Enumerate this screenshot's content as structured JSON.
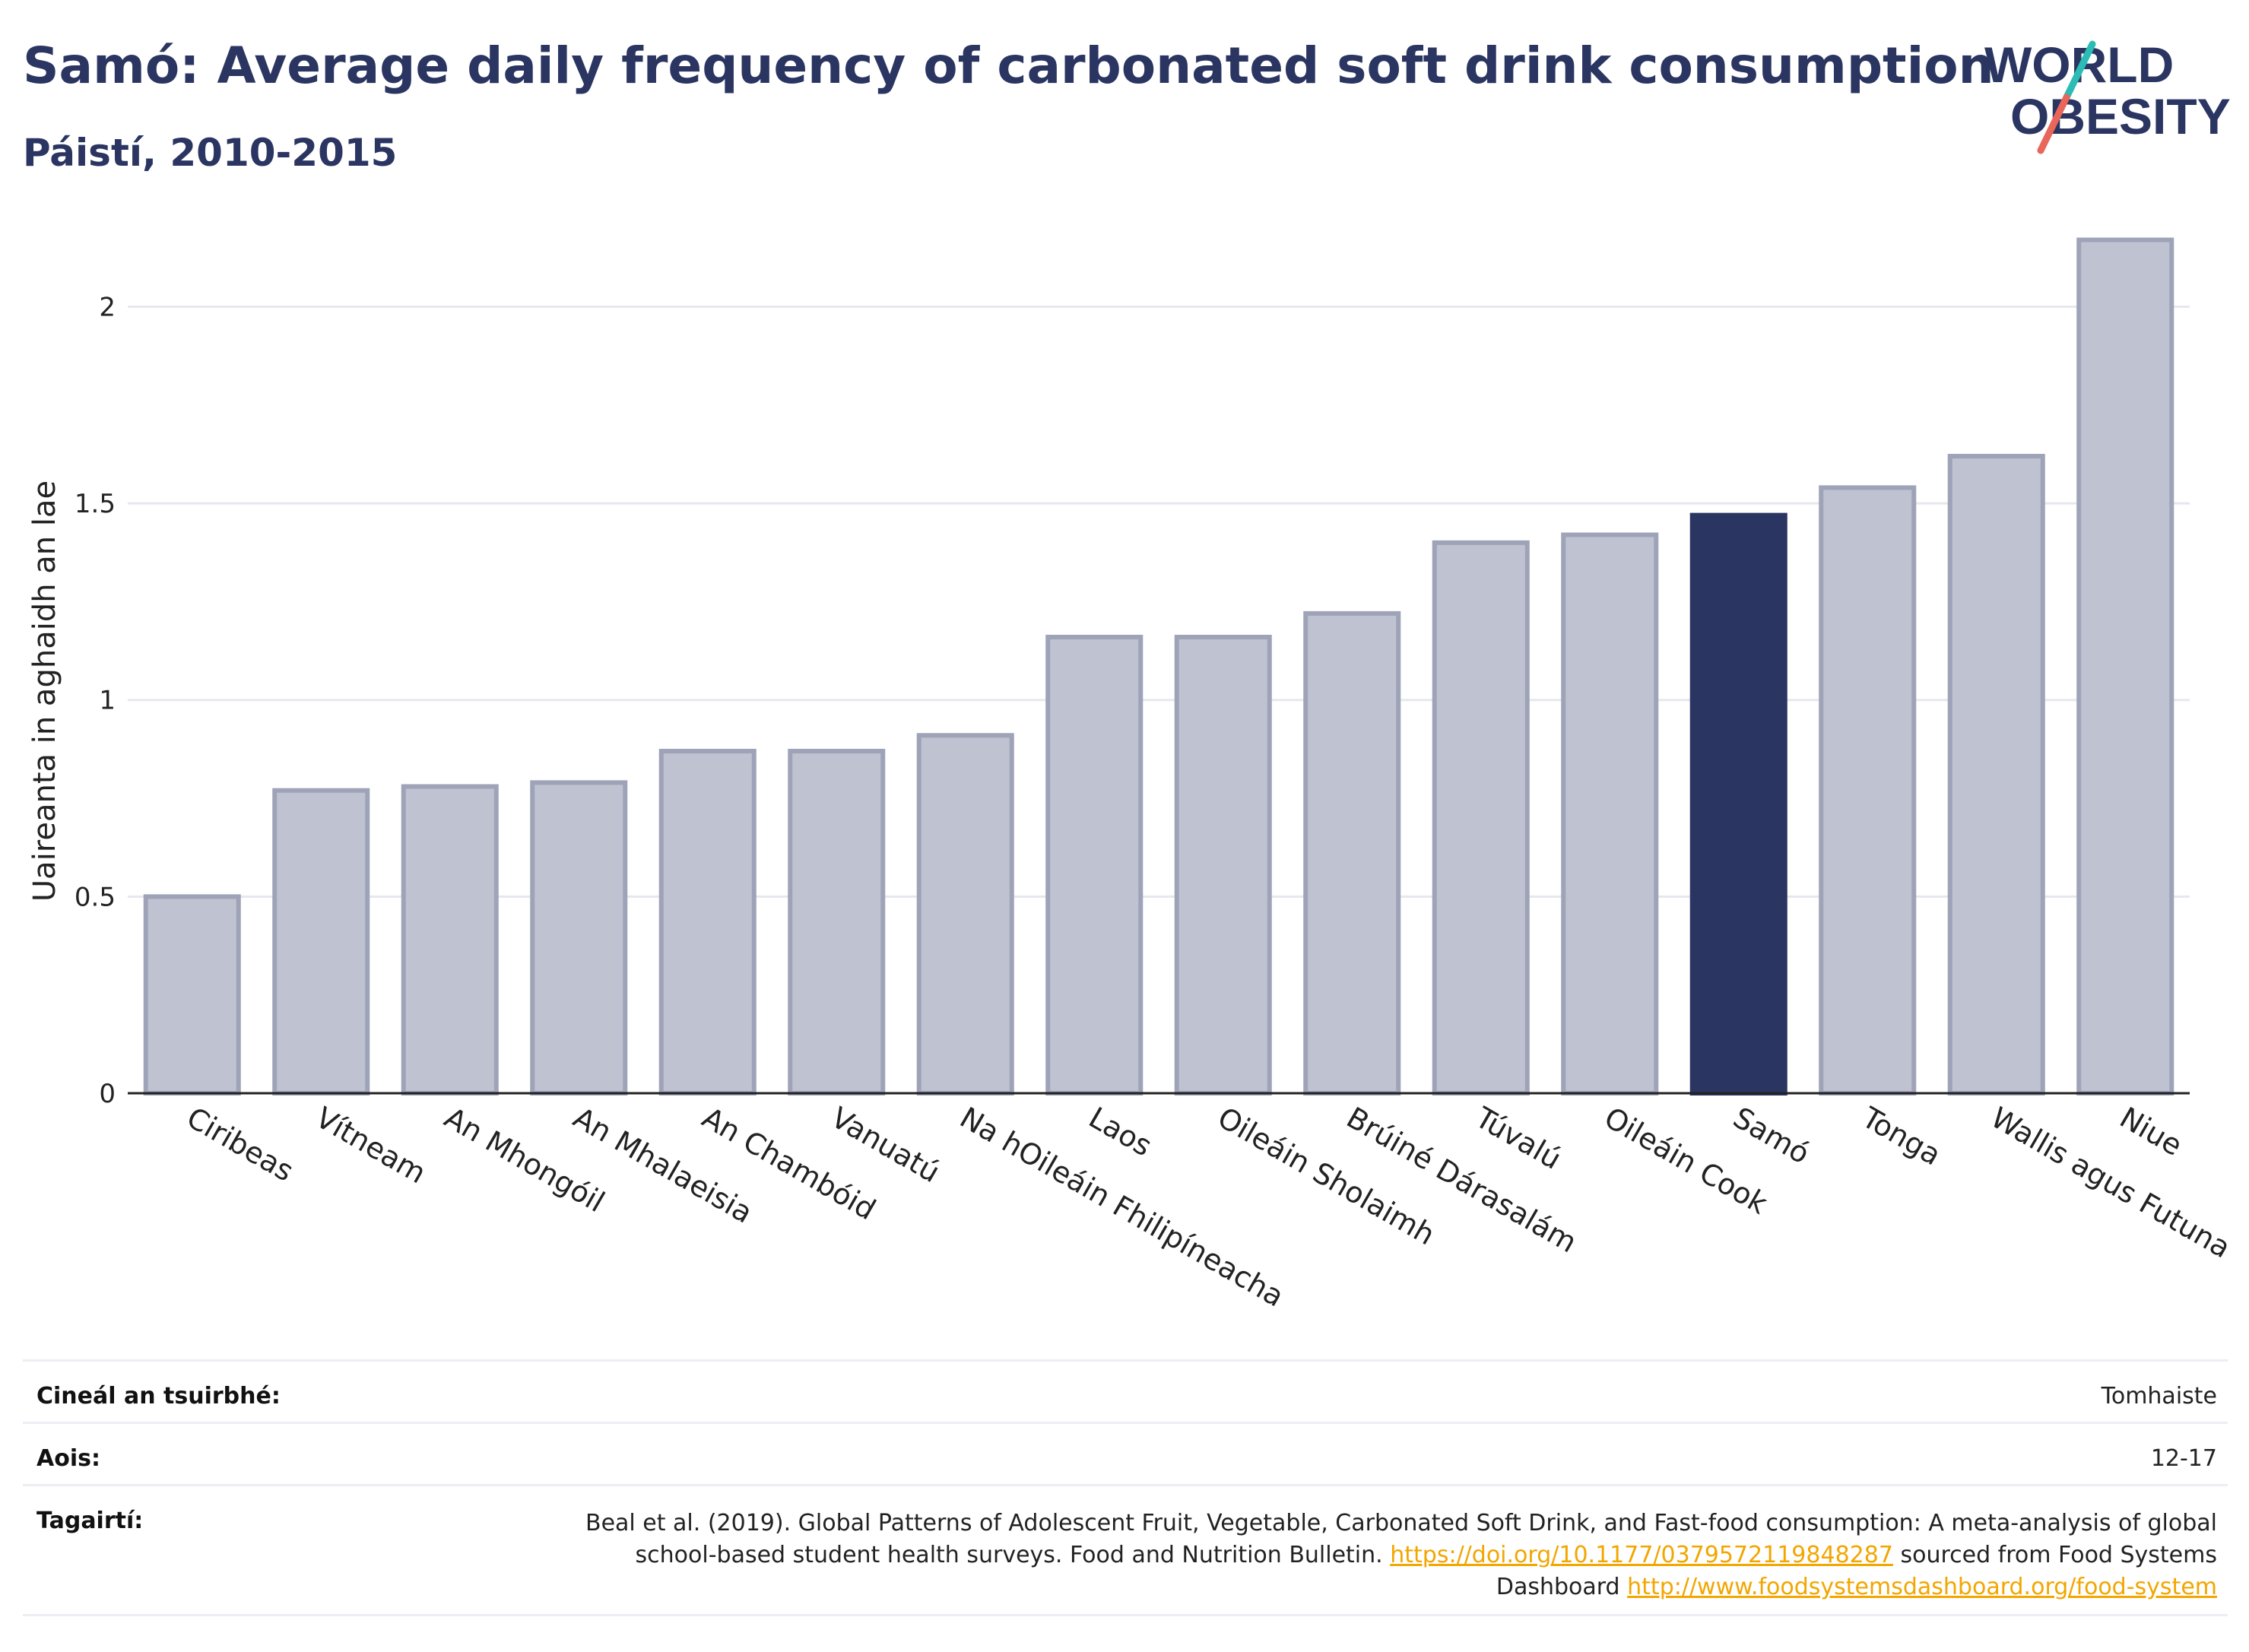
{
  "header": {
    "title": "Samó: Average daily frequency of carbonated soft drink consumption",
    "subtitle": "Páistí, 2010-2015"
  },
  "logo": {
    "line1": "WORLD",
    "line2": "OBESITY",
    "icon": "world-obesity-logo"
  },
  "colors": {
    "highlight": "#2b3561",
    "bar": "#bfc2d0",
    "bar_stroke": "#9ea3b8",
    "link": "#f2a600"
  },
  "chart_data": {
    "type": "bar",
    "ylabel": "Uaireanta in aghaidh an lae",
    "ylim": [
      0,
      2.2
    ],
    "yticks": [
      0,
      0.5,
      1,
      1.5,
      2
    ],
    "ytick_labels": [
      "0",
      "0.5",
      "1",
      "1.5",
      "2"
    ],
    "grid": true,
    "highlight": "Samó",
    "categories": [
      "Ciribeas",
      "Vítneam",
      "An Mhongóil",
      "An Mhalaeisia",
      "An Chambóid",
      "Vanuatú",
      "Na hOileáin Fhilipíneacha",
      "Laos",
      "Oileáin Sholaimh",
      "Brúiné Dárasalám",
      "Túvalú",
      "Oileáin Cook",
      "Samó",
      "Tonga",
      "Wallis agus Futuna",
      "Niue"
    ],
    "values": [
      0.5,
      0.77,
      0.78,
      0.79,
      0.87,
      0.87,
      0.91,
      1.16,
      1.16,
      1.22,
      1.4,
      1.42,
      1.47,
      1.54,
      1.62,
      2.17
    ]
  },
  "info": {
    "survey_label": "Cineál an tsuirbhé:",
    "survey_value": "Tomhaiste",
    "age_label": "Aois:",
    "age_value": "12-17",
    "ref_label": "Tagairtí:",
    "ref_text": "Beal et al. (2019). Global Patterns of Adolescent Fruit, Vegetable, Carbonated Soft Drink, and Fast-food consumption: A meta-analysis of global school-based student health surveys. Food and Nutrition Bulletin.",
    "ref_link1": "https://doi.org/10.1177/0379572119848287",
    "ref_mid": "sourced from Food Systems Dashboard",
    "ref_link2": "http://www.foodsystemsdashboard.org/food-system"
  }
}
